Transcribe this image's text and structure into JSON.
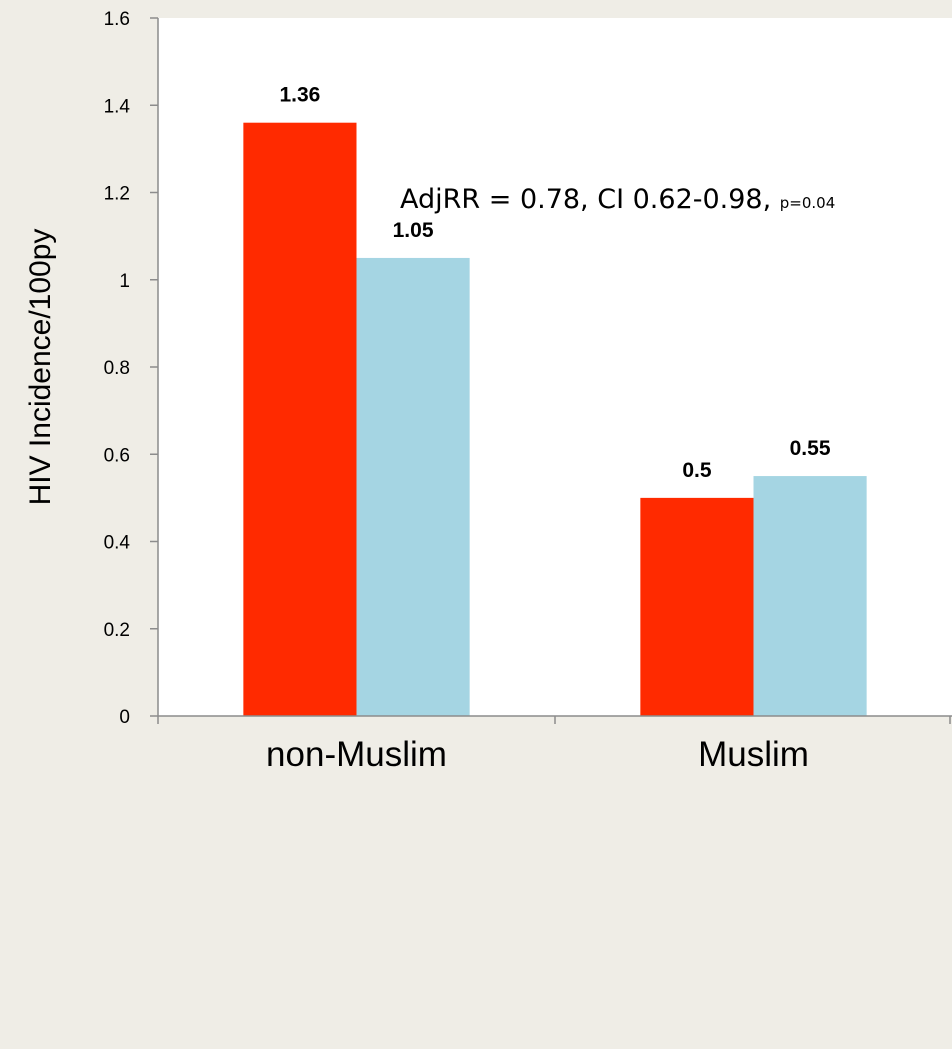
{
  "chart_data": {
    "type": "bar",
    "title": "",
    "xlabel": "",
    "ylabel": "HIV Incidence/100py",
    "categories": [
      "non-Muslim",
      "Muslim"
    ],
    "series": [
      {
        "color": "#ff2a00",
        "values": [
          1.36,
          0.5
        ],
        "labels": [
          "1.36",
          "0.5"
        ]
      },
      {
        "color": "#a5d5e3",
        "values": [
          1.05,
          0.55
        ],
        "labels": [
          "1.05",
          "0.55"
        ]
      }
    ],
    "ylim": [
      0,
      1.6
    ],
    "yticks": [
      0,
      0.2,
      0.4,
      0.6,
      0.8,
      1,
      1.2,
      1.4,
      1.6
    ],
    "ytick_labels": [
      "0",
      "0.2",
      "0.4",
      "0.6",
      "0.8",
      "1",
      "1.2",
      "1.4",
      "1.6"
    ],
    "grid": false,
    "annotation": {
      "main": "AdjRR = 0.78, CI 0.62-0.98, ",
      "small": "p=0.04"
    },
    "plot_background": "#ffffff",
    "page_background": "#efede6"
  }
}
